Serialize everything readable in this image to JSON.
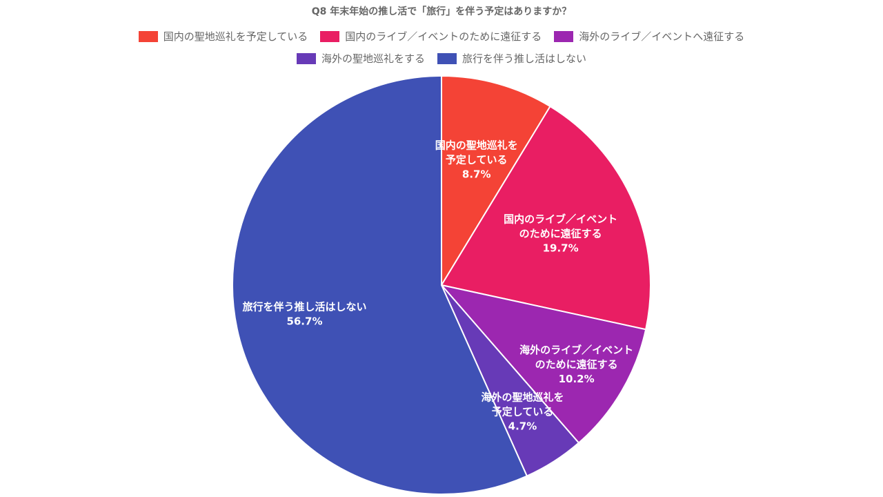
{
  "chart_data": {
    "type": "pie",
    "title": "Q8 年末年始の推し活で「旅行」を伴う予定はありますか？",
    "categories": [
      "国内の聖地巡礼を予定している",
      "国内のライブ／イベントのために遠征する",
      "海外のライブ／イベントへ遠征する",
      "海外の聖地巡礼をする",
      "旅行を伴う推し活はしない"
    ],
    "values": [
      8.7,
      19.7,
      10.2,
      4.7,
      56.7
    ],
    "colors": [
      "#f44336",
      "#e91e63",
      "#9c27b0",
      "#673ab7",
      "#3f51b5"
    ],
    "slice_labels": [
      [
        "国内の聖地巡礼を",
        "予定している",
        "8.7%"
      ],
      [
        "国内のライブ／イベント",
        "のために遠征する",
        "19.7%"
      ],
      [
        "海外のライブ／イベント",
        "のために遠征する",
        "10.2%"
      ],
      [
        "海外の聖地巡礼を",
        "予定している",
        "4.7%"
      ],
      [
        "旅行を伴う推し活はしない",
        "56.7%"
      ]
    ],
    "legend_position": "top"
  }
}
